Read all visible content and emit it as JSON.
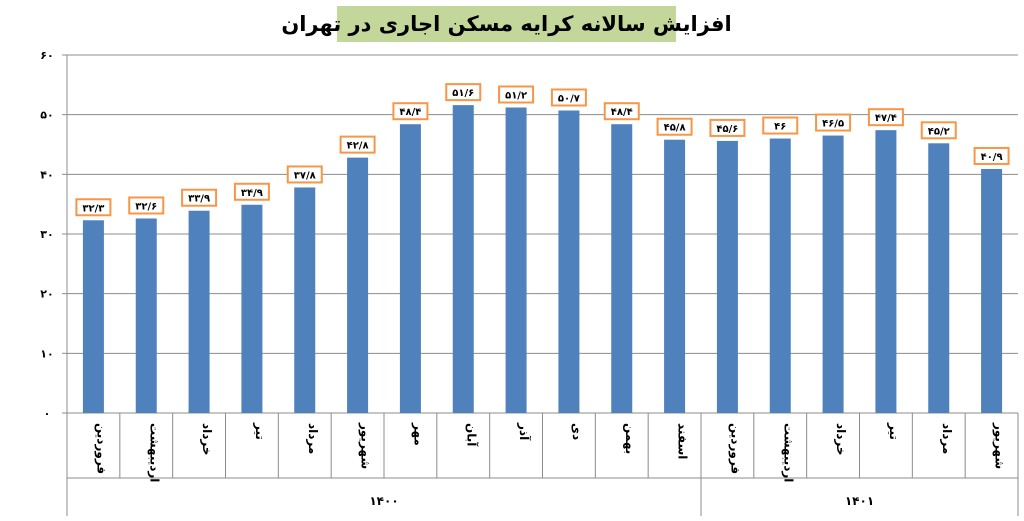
{
  "chart_data": {
    "type": "bar",
    "title": "افزایش سالانه کرایه مسکن اجاری در تهران",
    "xlabel": "",
    "ylabel": "",
    "ylim": [
      0,
      60
    ],
    "yticks": [
      "۰",
      "۱۰",
      "۲۰",
      "۳۰",
      "۴۰",
      "۵۰",
      "۶۰"
    ],
    "grid": true,
    "legend": "none",
    "bar_color": "#4f81bd",
    "label_border_color": "#f79646",
    "title_background": "#c4d79b",
    "categories": [
      "فروردین",
      "اردیبهشت",
      "خرداد",
      "تیر",
      "مرداد",
      "شهریور",
      "مهر",
      "آبان",
      "آذر",
      "دی",
      "بهمن",
      "اسفند",
      "فروردین",
      "اردیبهشت",
      "خرداد",
      "تیر",
      "مرداد",
      "شهریور"
    ],
    "values": [
      32.3,
      32.6,
      33.9,
      34.9,
      37.8,
      42.8,
      48.4,
      51.6,
      51.2,
      50.7,
      48.4,
      45.8,
      45.6,
      46,
      46.5,
      47.4,
      45.2,
      40.9
    ],
    "data_labels": [
      "۳۲/۳",
      "۳۲/۶",
      "۳۳/۹",
      "۳۴/۹",
      "۳۷/۸",
      "۴۲/۸",
      "۴۸/۴",
      "۵۱/۶",
      "۵۱/۲",
      "۵۰/۷",
      "۴۸/۴",
      "۴۵/۸",
      "۴۵/۶",
      "۴۶",
      "۴۶/۵",
      "۴۷/۴",
      "۴۵/۲",
      "۴۰/۹"
    ],
    "groups": [
      {
        "label": "۱۴۰۰",
        "count": 12
      },
      {
        "label": "۱۴۰۱",
        "count": 6
      }
    ]
  }
}
